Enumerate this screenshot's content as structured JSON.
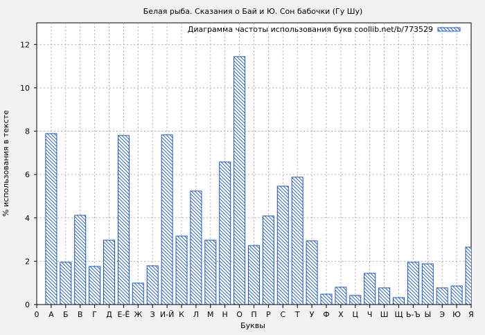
{
  "chart_data": {
    "type": "bar",
    "title": "Белая рыба. Сказания о Бай и Ю. Сон бабочки (Гу Шу)",
    "xlabel": "Буквы",
    "ylabel": "% использования в тексте",
    "legend": {
      "label": "Диаграмма частоты использования букв coollib.net/b/773529",
      "placement": "top-right"
    },
    "x_tick_zero": "0",
    "categories": [
      "А",
      "Б",
      "В",
      "Г",
      "Д",
      "Е-Ё",
      "Ж",
      "З",
      "И-Й",
      "К",
      "Л",
      "М",
      "Н",
      "О",
      "П",
      "Р",
      "С",
      "Т",
      "У",
      "Ф",
      "Х",
      "Ц",
      "Ч",
      "Ш",
      "Щ",
      "Ь-Ъ",
      "Ы",
      "Э",
      "Ю",
      "Я"
    ],
    "values": [
      7.89,
      1.95,
      4.12,
      1.76,
      2.97,
      7.8,
      0.99,
      1.79,
      7.83,
      3.16,
      5.24,
      2.97,
      6.58,
      11.44,
      2.72,
      4.09,
      5.46,
      5.88,
      2.94,
      0.48,
      0.8,
      0.42,
      1.44,
      0.77,
      0.32,
      1.95,
      1.88,
      0.77,
      0.86,
      2.65
    ],
    "ylim": [
      0,
      13
    ],
    "yticks": [
      0,
      2,
      4,
      6,
      8,
      10,
      12
    ],
    "grid": true,
    "bar_color": "#1a56c4",
    "bar_fill": "diagonal-hatch"
  }
}
